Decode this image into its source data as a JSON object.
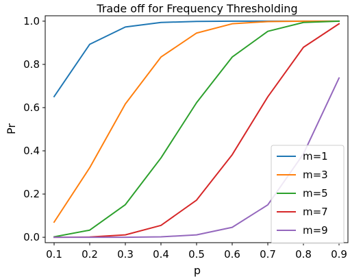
{
  "chart_data": {
    "type": "line",
    "title": "Trade off for Frequency Thresholding",
    "xlabel": "p",
    "ylabel": "Pr",
    "x": [
      0.1,
      0.2,
      0.3,
      0.4,
      0.5,
      0.6,
      0.7,
      0.8,
      0.9
    ],
    "xticks": [
      "0.1",
      "0.2",
      "0.3",
      "0.4",
      "0.5",
      "0.6",
      "0.7",
      "0.8",
      "0.9"
    ],
    "yticks": [
      "0.0",
      "0.2",
      "0.4",
      "0.6",
      "0.8",
      "1.0"
    ],
    "ytick_values": [
      0.0,
      0.2,
      0.4,
      0.6,
      0.8,
      1.0
    ],
    "xlim": [
      0.075,
      0.925
    ],
    "ylim": [
      -0.025,
      1.025
    ],
    "grid": false,
    "legend_position": "bottom-right",
    "series": [
      {
        "name": "m=1",
        "color": "#1f77b4",
        "values": [
          0.651,
          0.893,
          0.973,
          0.994,
          0.999,
          1.0,
          1.0,
          1.0,
          1.0
        ]
      },
      {
        "name": "m=3",
        "color": "#ff7f0e",
        "values": [
          0.07,
          0.322,
          0.617,
          0.834,
          0.945,
          0.988,
          0.998,
          1.0,
          1.0
        ]
      },
      {
        "name": "m=5",
        "color": "#2ca02c",
        "values": [
          0.002,
          0.033,
          0.151,
          0.367,
          0.623,
          0.834,
          0.953,
          0.994,
          1.0
        ]
      },
      {
        "name": "m=7",
        "color": "#d62728",
        "values": [
          0.0,
          0.001,
          0.011,
          0.055,
          0.172,
          0.382,
          0.65,
          0.879,
          0.988
        ]
      },
      {
        "name": "m=9",
        "color": "#9467bd",
        "values": [
          0.0,
          0.0,
          0.0,
          0.002,
          0.011,
          0.046,
          0.15,
          0.386,
          0.737
        ]
      }
    ]
  }
}
